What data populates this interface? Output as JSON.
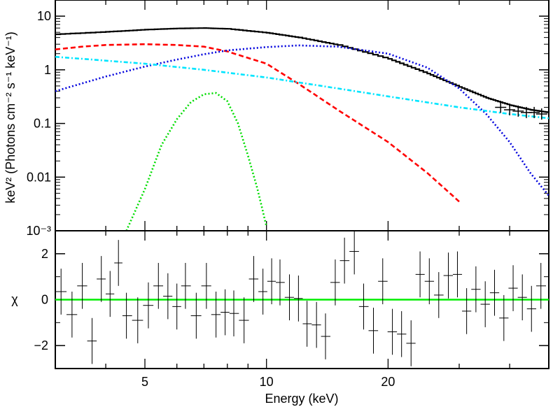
{
  "chart_data": [
    {
      "type": "line",
      "panel": "spectrum",
      "ylabel": "keV² (Photons cm⁻² s⁻¹ keV⁻¹)",
      "xlabel": "",
      "xscale": "log",
      "yscale": "log",
      "xlim": [
        3.0,
        50.0
      ],
      "ylim": [
        0.001,
        20
      ],
      "grid": false,
      "yticks": [
        {
          "value": 0.001,
          "label": "10⁻³"
        },
        {
          "value": 0.01,
          "label": "0.01"
        },
        {
          "value": 0.1,
          "label": "0.1"
        },
        {
          "value": 1,
          "label": "1"
        },
        {
          "value": 10,
          "label": "10"
        }
      ],
      "series": [
        {
          "style": "solid-step",
          "color": "#000000",
          "x": [
            3.0,
            4,
            5,
            6,
            7,
            8,
            10,
            12,
            15,
            20,
            25,
            30,
            35,
            40,
            45,
            50
          ],
          "values": [
            4.6,
            5.1,
            5.6,
            5.9,
            6.0,
            5.8,
            4.9,
            4.0,
            2.9,
            1.6,
            0.85,
            0.48,
            0.3,
            0.22,
            0.18,
            0.16
          ]
        },
        {
          "style": "dashed",
          "color": "#ff0000",
          "x": [
            3.0,
            3.5,
            4,
            5,
            6,
            7,
            8,
            10,
            12,
            15,
            20,
            25,
            30
          ],
          "values": [
            2.4,
            2.7,
            2.9,
            3.0,
            2.9,
            2.7,
            2.2,
            1.3,
            0.55,
            0.18,
            0.045,
            0.012,
            0.0035
          ]
        },
        {
          "style": "dotted",
          "color": "#0000dd",
          "x": [
            3.0,
            4,
            5,
            6,
            7,
            8,
            10,
            12,
            15,
            20,
            25,
            30,
            35,
            40,
            45,
            50
          ],
          "values": [
            0.4,
            0.75,
            1.15,
            1.55,
            1.95,
            2.3,
            2.65,
            2.85,
            2.7,
            2.0,
            1.1,
            0.45,
            0.15,
            0.045,
            0.012,
            0.0045
          ]
        },
        {
          "style": "dash-dot",
          "color": "#00e5ff",
          "x": [
            3.0,
            5,
            7,
            10,
            15,
            20,
            30,
            40,
            50
          ],
          "values": [
            1.75,
            1.3,
            1.0,
            0.72,
            0.45,
            0.32,
            0.2,
            0.15,
            0.125
          ]
        },
        {
          "style": "dotted",
          "color": "#00dd00",
          "x": [
            4.5,
            5,
            5.5,
            6,
            6.5,
            7,
            7.5,
            8,
            8.5,
            9,
            9.5,
            10
          ],
          "values": [
            0.001,
            0.006,
            0.04,
            0.12,
            0.25,
            0.35,
            0.37,
            0.26,
            0.1,
            0.025,
            0.006,
            0.0012
          ]
        }
      ],
      "data_points": {
        "color": "#000000",
        "x": [
          38,
          40,
          42,
          44,
          46,
          48
        ],
        "values": [
          0.2,
          0.18,
          0.17,
          0.16,
          0.16,
          0.15
        ]
      }
    },
    {
      "type": "scatter",
      "panel": "residuals",
      "xlabel": "Energy (keV)",
      "ylabel": "χ",
      "xscale": "log",
      "xlim": [
        3.0,
        50.0
      ],
      "ylim": [
        -3,
        3
      ],
      "grid": false,
      "xticks": [
        {
          "value": 5,
          "label": "5"
        },
        {
          "value": 10,
          "label": "10"
        },
        {
          "value": 20,
          "label": "20"
        }
      ],
      "yticks": [
        {
          "value": -2,
          "label": "−2"
        },
        {
          "value": 0,
          "label": "0"
        },
        {
          "value": 2,
          "label": "2"
        }
      ],
      "zero_line_color": "#00ee00",
      "x": [
        3.1,
        3.3,
        3.5,
        3.7,
        3.9,
        4.1,
        4.3,
        4.5,
        4.8,
        5.1,
        5.4,
        5.7,
        6.0,
        6.3,
        6.7,
        7.1,
        7.5,
        7.9,
        8.3,
        8.8,
        9.3,
        9.8,
        10.3,
        10.8,
        11.4,
        12.0,
        12.6,
        13.3,
        14.0,
        14.8,
        15.6,
        16.5,
        17.4,
        18.4,
        19.4,
        20.5,
        21.6,
        22.8,
        24.0,
        25.3,
        26.7,
        28.2,
        29.7,
        31.3,
        33.0,
        34.8,
        36.7,
        38.7,
        40.8,
        43.0,
        45.3,
        47.8
      ],
      "values": [
        0.35,
        -0.65,
        0.6,
        -1.8,
        0.9,
        0.25,
        1.6,
        -0.7,
        -0.9,
        -0.25,
        0.6,
        0.15,
        -0.3,
        0.6,
        -0.7,
        0.6,
        -0.65,
        -0.55,
        -0.6,
        -0.9,
        0.9,
        0.35,
        0.8,
        0.75,
        0.1,
        0.05,
        -1.05,
        -1.1,
        -1.6,
        0.75,
        1.7,
        2.1,
        -0.3,
        -1.35,
        0.8,
        -1.4,
        -1.5,
        -1.9,
        1.1,
        0.8,
        0.2,
        1.05,
        1.1,
        -0.5,
        0.45,
        -0.2,
        0.3,
        -0.8,
        0.5,
        0.1,
        -0.4,
        0.6
      ],
      "errors": 1.0
    }
  ]
}
